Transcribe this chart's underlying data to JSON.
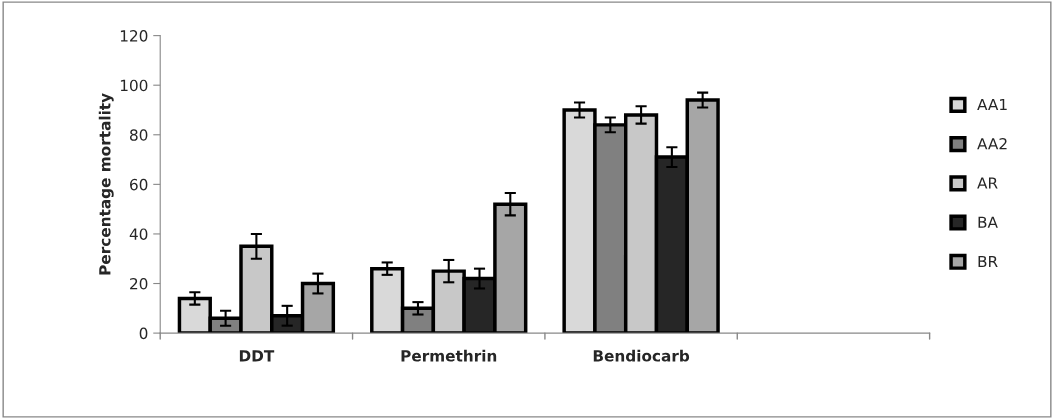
{
  "chart_data": {
    "type": "bar",
    "ylabel": "Percentage mortality",
    "categories": [
      "DDT",
      "Permethrin",
      "Bendiocarb",
      null
    ],
    "series": [
      {
        "name": "AA1",
        "color": "#d9d9d9",
        "values": [
          14,
          26,
          90,
          null
        ],
        "errors": [
          2.5,
          2.5,
          3,
          null
        ]
      },
      {
        "name": "AA2",
        "color": "#808080",
        "values": [
          6,
          10,
          84,
          null
        ],
        "errors": [
          3,
          2.5,
          3,
          null
        ]
      },
      {
        "name": "AR",
        "color": "#c8c8c8",
        "values": [
          35,
          25,
          88,
          null
        ],
        "errors": [
          5,
          4.5,
          3.5,
          null
        ]
      },
      {
        "name": "BA",
        "color": "#262626",
        "values": [
          7,
          22,
          71,
          null
        ],
        "errors": [
          4,
          4,
          4,
          null
        ]
      },
      {
        "name": "BR",
        "color": "#a6a6a6",
        "values": [
          20,
          52,
          94,
          null
        ],
        "errors": [
          4,
          4.5,
          3,
          null
        ]
      }
    ],
    "ylim": [
      0,
      120
    ],
    "yticks": [
      0,
      20,
      40,
      60,
      80,
      100,
      120
    ],
    "grid": false,
    "legend": "right"
  }
}
